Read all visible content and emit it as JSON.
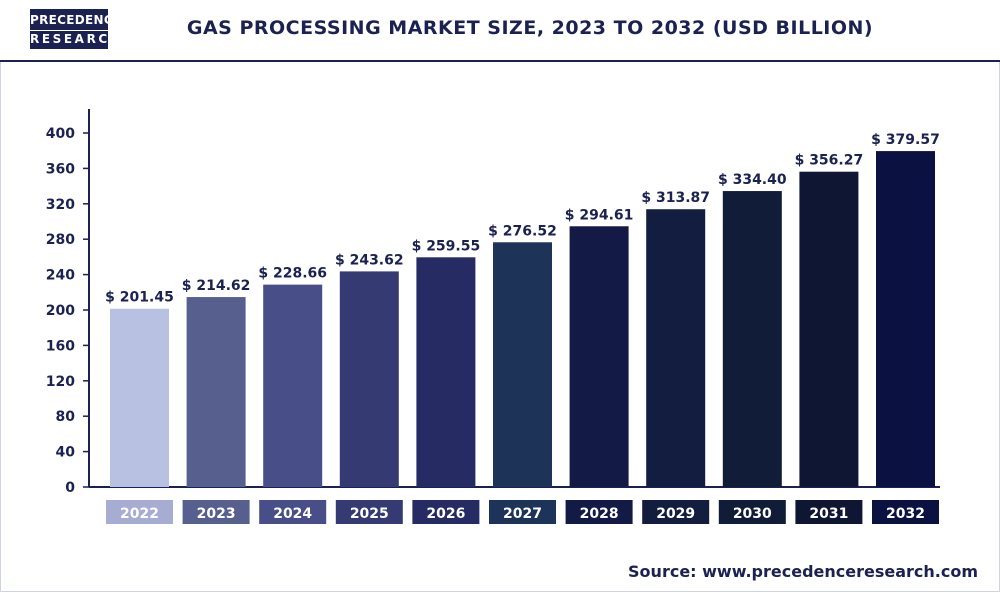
{
  "header": {
    "logo_line1": "PRECEDENCE",
    "logo_line2": "RESEARCH",
    "title": "GAS PROCESSING MARKET SIZE, 2023 TO 2032 (USD BILLION)"
  },
  "footer": {
    "source": "Source: www.precedenceresearch.com"
  },
  "chart_data": {
    "type": "bar",
    "title": "GAS PROCESSING MARKET SIZE, 2023 TO 2032 (USD BILLION)",
    "xlabel": "",
    "ylabel": "",
    "categories": [
      "2022",
      "2023",
      "2024",
      "2025",
      "2026",
      "2027",
      "2028",
      "2029",
      "2030",
      "2031",
      "2032"
    ],
    "values": [
      201.45,
      214.62,
      228.66,
      243.62,
      259.55,
      276.52,
      294.61,
      313.87,
      334.4,
      356.27,
      379.57
    ],
    "value_labels": [
      "$ 201.45",
      "$ 214.62",
      "$ 228.66",
      "$ 243.62",
      "$ 259.55",
      "$ 276.52",
      "$ 294.61",
      "$ 313.87",
      "$ 334.40",
      "$ 356.27",
      "$ 379.57"
    ],
    "ylim": [
      0,
      400
    ],
    "yticks": [
      0,
      40,
      80,
      120,
      160,
      200,
      240,
      280,
      320,
      360,
      400
    ],
    "grid": false,
    "legend": "none",
    "colors": [
      "#b9c1e2",
      "#575f8f",
      "#474e88",
      "#353b72",
      "#262b63",
      "#1d3358",
      "#121a45",
      "#131d3f",
      "#111c38",
      "#0f1634",
      "#0b1241"
    ],
    "category_label_colors": [
      "#a6acd2",
      "#575f8f",
      "#474e88",
      "#353b72",
      "#262b63",
      "#1d3358",
      "#121a45",
      "#131d3f",
      "#111c38",
      "#0f1634",
      "#0b1241"
    ]
  }
}
